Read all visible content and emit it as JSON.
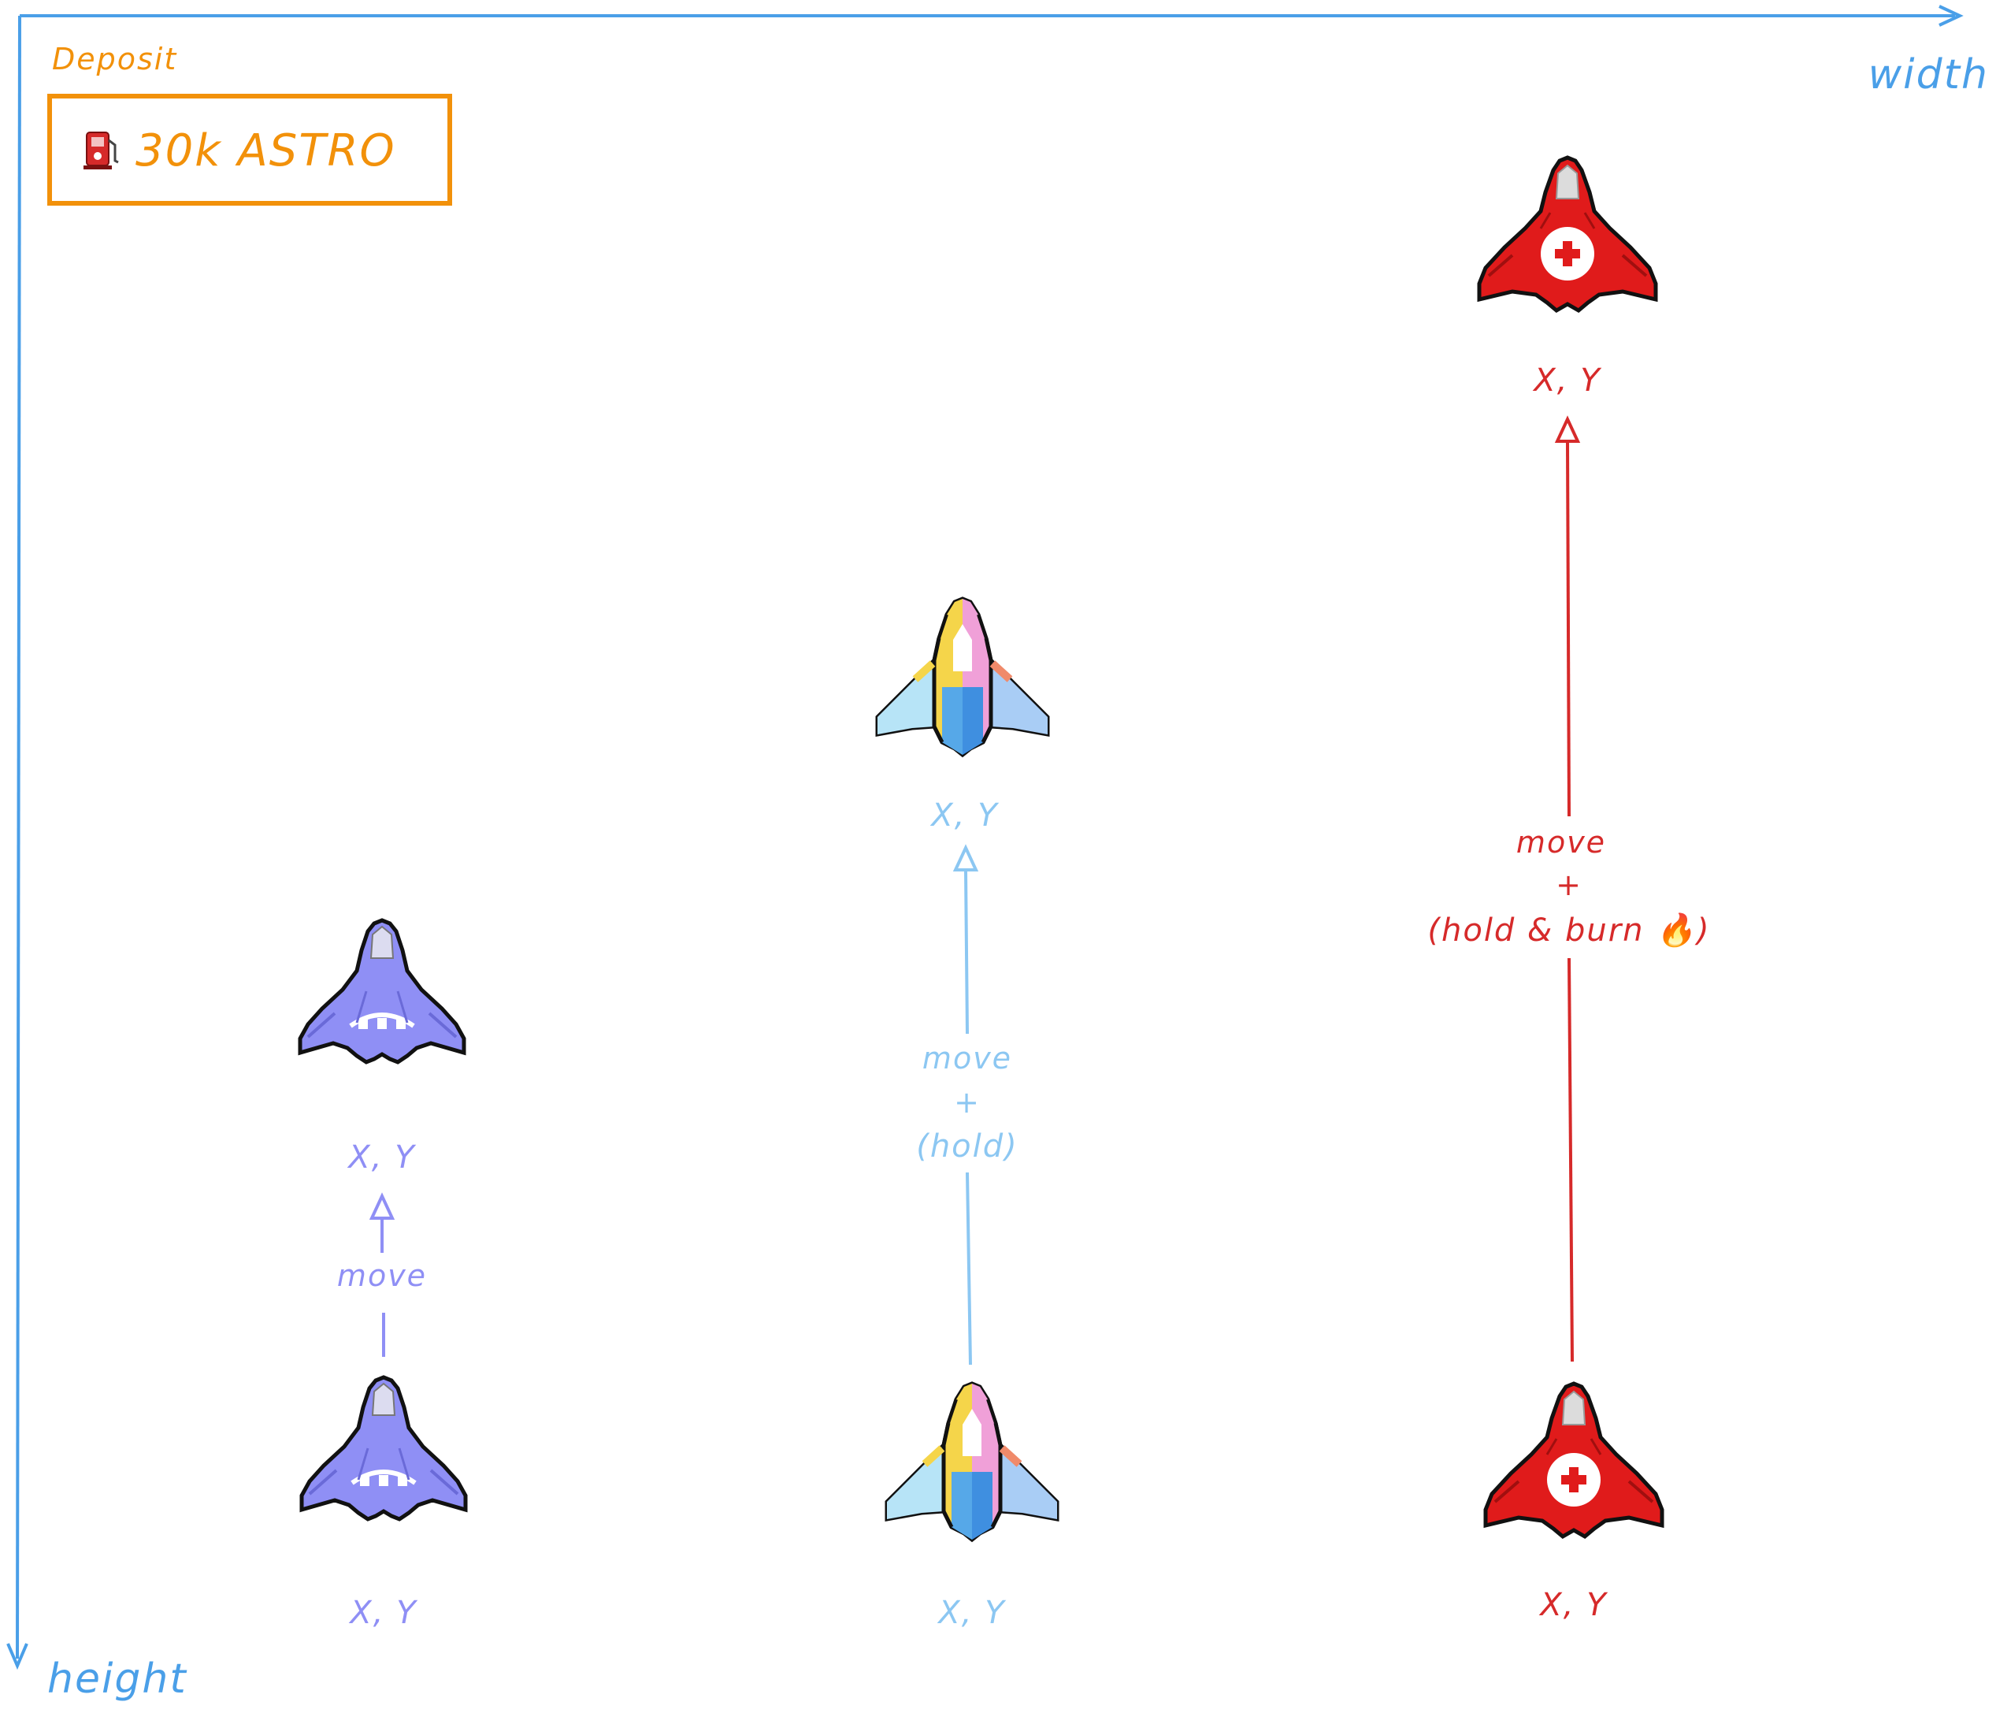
{
  "colors": {
    "axis": "#4a9fe8",
    "deposit": "#f2910a",
    "purple": "#8f8ff5",
    "sky": "#8cc7f2",
    "red": "#d62a2a",
    "outline": "#111111"
  },
  "deposit": {
    "label": "Deposit",
    "amount": "30k ASTRO",
    "icon": "fuel-pump-icon"
  },
  "axes": {
    "x_label": "width",
    "y_label": "height"
  },
  "ships": {
    "purple": {
      "start_coord": "X, Y",
      "end_coord": "X, Y",
      "action": [
        "move"
      ]
    },
    "sky": {
      "start_coord": "X, Y",
      "end_coord": "X, Y",
      "action": [
        "move",
        "+",
        "(hold)"
      ]
    },
    "red": {
      "start_coord": "X, Y",
      "end_coord": "X, Y",
      "action": [
        "move",
        "+",
        "(hold & burn 🔥)"
      ]
    }
  }
}
